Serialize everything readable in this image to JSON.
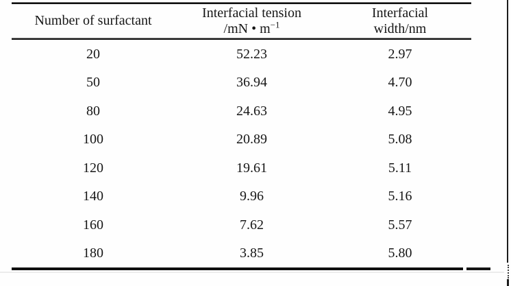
{
  "page": {
    "background": "#fefefe",
    "rule_color": "#101010",
    "text_color": "#161616"
  },
  "table": {
    "headers": [
      {
        "line1": "Number of surfactant",
        "line2": "",
        "sup": ""
      },
      {
        "line1": "Interfacial tension",
        "line2": "/mN • m",
        "sup": "−1"
      },
      {
        "line1": "Interfacial",
        "line2": "width/nm",
        "sup": ""
      }
    ],
    "rows": [
      [
        "20",
        "52.23",
        "2.97"
      ],
      [
        "50",
        "36.94",
        "4.70"
      ],
      [
        "80",
        "24.63",
        "4.95"
      ],
      [
        "100",
        "20.89",
        "5.08"
      ],
      [
        "120",
        "19.61",
        "5.11"
      ],
      [
        "140",
        "9.96",
        "5.16"
      ],
      [
        "160",
        "7.62",
        "5.57"
      ],
      [
        "180",
        "3.85",
        "5.80"
      ]
    ]
  },
  "chart_data": {
    "type": "table",
    "columns": [
      "Number of surfactant",
      "Interfacial tension /mN•m−1",
      "Interfacial width/nm"
    ],
    "rows": [
      [
        20,
        52.23,
        2.97
      ],
      [
        50,
        36.94,
        4.7
      ],
      [
        80,
        24.63,
        4.95
      ],
      [
        100,
        20.89,
        5.08
      ],
      [
        120,
        19.61,
        5.11
      ],
      [
        140,
        9.96,
        5.16
      ],
      [
        160,
        7.62,
        5.57
      ],
      [
        180,
        3.85,
        5.8
      ]
    ]
  }
}
